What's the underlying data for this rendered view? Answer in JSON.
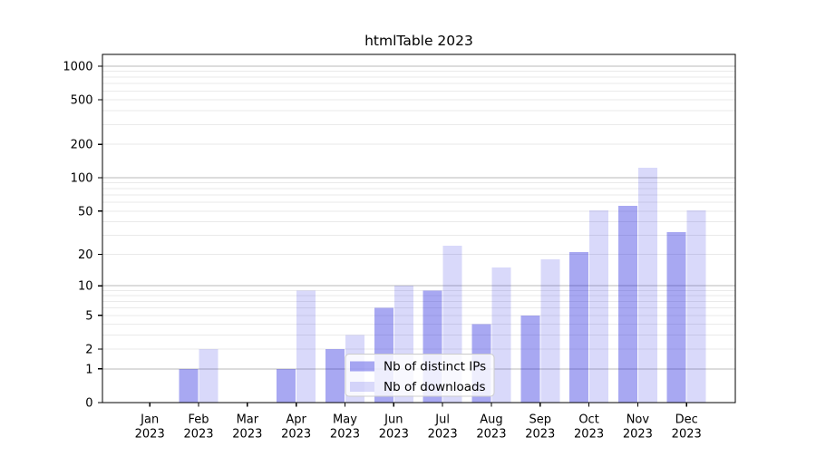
{
  "chart_data": {
    "type": "bar",
    "title": "htmlTable 2023",
    "categories": [
      "Jan 2023",
      "Feb 2023",
      "Mar 2023",
      "Apr 2023",
      "May 2023",
      "Jun 2023",
      "Jul 2023",
      "Aug 2023",
      "Sep 2023",
      "Oct 2023",
      "Nov 2023",
      "Dec 2023"
    ],
    "series": [
      {
        "name": "Nb of distinct IPs",
        "color_key": "ips",
        "values": [
          0,
          1,
          0,
          1,
          2,
          6,
          9,
          4,
          5,
          21,
          56,
          32
        ]
      },
      {
        "name": "Nb of downloads",
        "color_key": "downloads",
        "values": [
          0,
          2,
          0,
          9,
          3,
          10,
          24,
          15,
          18,
          51,
          123,
          51
        ]
      }
    ],
    "xlabel": "",
    "ylabel": "",
    "yscale": "log1p",
    "yticks": [
      0,
      1,
      2,
      5,
      10,
      20,
      50,
      100,
      200,
      500,
      1000
    ],
    "ylim": [
      0,
      1273
    ],
    "grid": "on",
    "legend_position": "lower-center-inside",
    "colors": {
      "ips": "rgba(25,25,222,0.38)",
      "downloads": "rgba(25,25,222,0.165)",
      "grid_major": "#b9b9b9",
      "grid_minor": "#eaeaea",
      "spine": "#000000",
      "legend_border": "#cccccc"
    }
  }
}
